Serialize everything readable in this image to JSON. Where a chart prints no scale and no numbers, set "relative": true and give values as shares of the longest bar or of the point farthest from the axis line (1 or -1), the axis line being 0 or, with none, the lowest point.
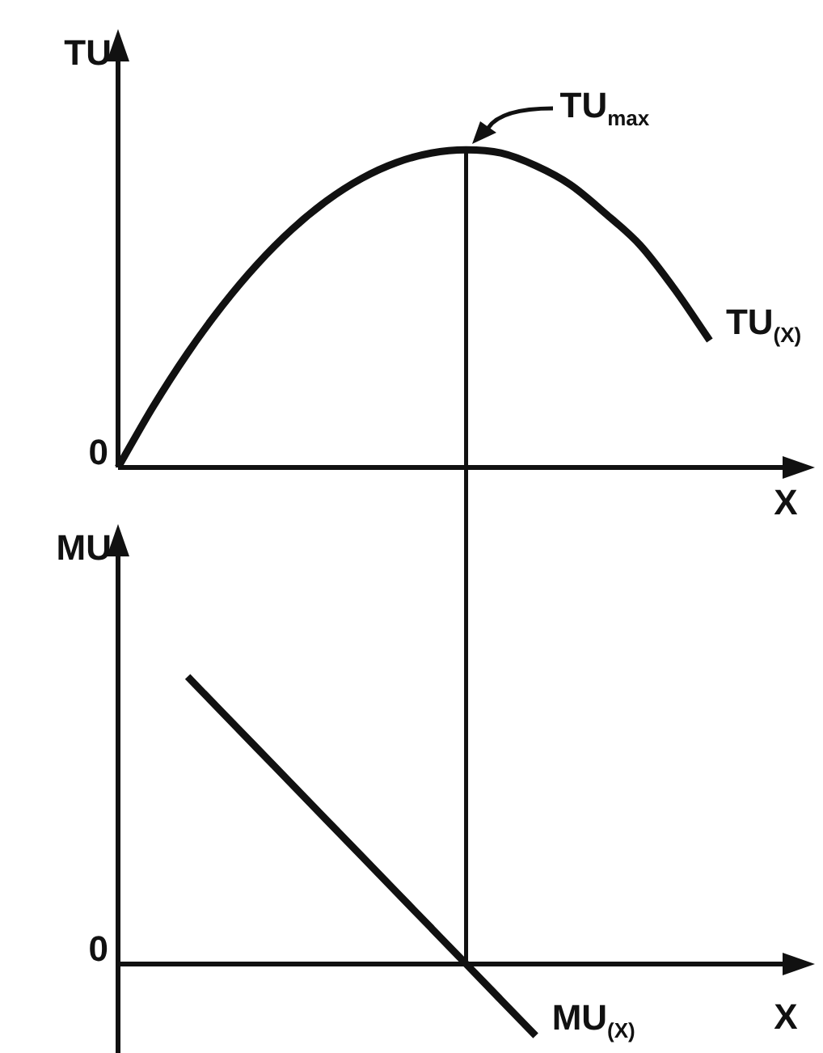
{
  "chart_data": [
    {
      "type": "line",
      "relative": true,
      "ylabel": "TU",
      "xlabel": "X",
      "legend": false,
      "marker": "none",
      "line_style": "solid",
      "categories": [
        null,
        null,
        null,
        null,
        null,
        null,
        null,
        null,
        null,
        null,
        null,
        null,
        null,
        null,
        null,
        null,
        null,
        null,
        null,
        null
      ],
      "series": [
        {
          "name": "TU$_{(X)}$",
          "color": "#111111",
          "values": [
            0,
            0.19,
            0.36,
            0.51,
            0.64,
            0.75,
            0.84,
            0.91,
            0.96,
            0.99,
            1,
            0.99,
            0.95,
            0.89,
            0.8,
            0.7,
            0.56,
            0.4,
            null,
            null
          ]
        }
      ],
      "annotations": [
        "0",
        "TU$_{max}$"
      ]
    },
    {
      "type": "line",
      "relative": true,
      "ylabel": "MU",
      "xlabel": "X",
      "legend": false,
      "marker": "none",
      "line_style": "solid",
      "categories": [
        null,
        null,
        null,
        null,
        null,
        null,
        null,
        null,
        null,
        null,
        null,
        null,
        null,
        null,
        null,
        null,
        null,
        null,
        null,
        null
      ],
      "series": [
        {
          "name": "MU$_{(X)}$",
          "color": "#111111",
          "values": [
            null,
            null,
            1,
            0.875,
            0.75,
            0.625,
            0.5,
            0.375,
            0.25,
            0.125,
            0,
            -0.125,
            -0.25,
            null,
            null,
            null,
            null,
            null,
            null,
            null
          ]
        }
      ],
      "annotations": [
        "0"
      ]
    }
  ]
}
